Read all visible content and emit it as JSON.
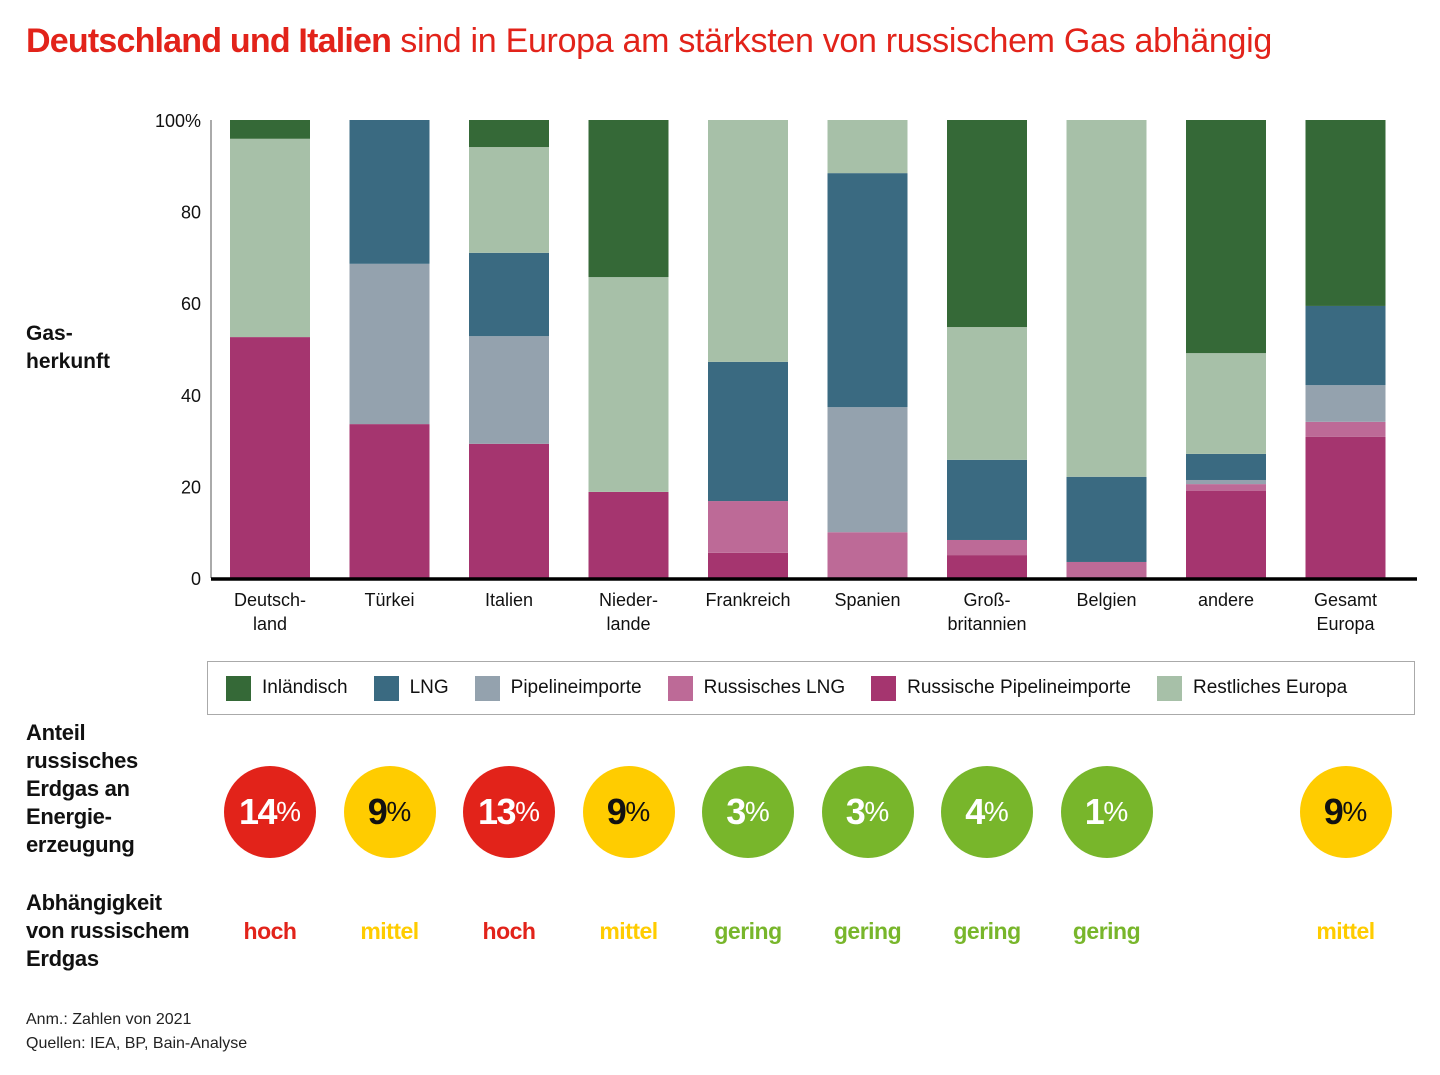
{
  "title": {
    "bold": "Deutschland und Italien",
    "regular": " sind in Europa am stärksten von russischem Gas abhängig",
    "color": "#e2231a"
  },
  "y_axis_title": [
    "Gas-",
    "herkunft"
  ],
  "chart_data": {
    "type": "bar",
    "stacked": true,
    "title": "Deutschland und Italien sind in Europa am stärksten von russischem Gas abhängig",
    "xlabel": "",
    "ylabel": "Gasherkunft",
    "ylim": [
      0,
      100
    ],
    "yticks": [
      0,
      20,
      40,
      60,
      80,
      100
    ],
    "ytick_labels": [
      "0",
      "20",
      "40",
      "60",
      "80",
      "100%"
    ],
    "grid": false,
    "legend_position": "bottom",
    "categories": [
      [
        "Deutsch-",
        "land"
      ],
      [
        "Türkei"
      ],
      [
        "Italien"
      ],
      [
        "Nieder-",
        "lande"
      ],
      [
        "Frankreich"
      ],
      [
        "Spanien"
      ],
      [
        "Groß-",
        "britannien"
      ],
      [
        "Belgien"
      ],
      [
        "andere"
      ],
      [
        "Gesamt",
        "Europa"
      ]
    ],
    "series": [
      {
        "name": "Russische Pipelineimporte",
        "color": "#a5356f",
        "values": [
          52.6,
          33.6,
          29.3,
          18.8,
          5.5,
          0,
          5.0,
          0,
          19.0,
          30.8
        ]
      },
      {
        "name": "Russisches LNG",
        "color": "#bd6a97",
        "values": [
          0,
          0,
          0,
          0,
          11.3,
          10.0,
          3.3,
          3.5,
          1.5,
          3.3
        ]
      },
      {
        "name": "Pipelineimporte",
        "color": "#94a2ae",
        "values": [
          0,
          35.0,
          23.5,
          0,
          0,
          27.3,
          0,
          0,
          0.9,
          8.0
        ]
      },
      {
        "name": "LNG",
        "color": "#3a6a81",
        "values": [
          0,
          31.4,
          18.2,
          0,
          30.4,
          51.1,
          17.5,
          18.6,
          5.7,
          17.3
        ]
      },
      {
        "name": "Restliches Europa",
        "color": "#a7c0a8",
        "values": [
          43.3,
          0,
          23.1,
          46.9,
          52.8,
          11.6,
          29.0,
          77.9,
          22.0,
          0
        ]
      },
      {
        "name": "Inländisch",
        "color": "#356937",
        "values": [
          4.1,
          0,
          5.9,
          34.3,
          0,
          0,
          45.2,
          0,
          50.9,
          40.6
        ]
      }
    ]
  },
  "legend": [
    {
      "label": "Inländisch",
      "color": "#356937"
    },
    {
      "label": "LNG",
      "color": "#3a6a81"
    },
    {
      "label": "Pipelineimporte",
      "color": "#94a2ae"
    },
    {
      "label": "Russisches LNG",
      "color": "#bd6a97"
    },
    {
      "label": "Russische Pipelineimporte",
      "color": "#a5356f"
    },
    {
      "label": "Restliches Europa",
      "color": "#a7c0a8"
    }
  ],
  "share_label": [
    "Anteil",
    "russisches",
    "Erdgas an",
    "Energie-",
    "erzeugung"
  ],
  "dependency_label": [
    "Abhängigkeit",
    "von russischem",
    "Erdgas"
  ],
  "levels": {
    "hoch": {
      "bg": "#e2231a",
      "text": "#ffffff",
      "label_color": "#e2231a"
    },
    "mittel": {
      "bg": "#ffcc00",
      "text": "#111111",
      "label_color": "#ffcc00"
    },
    "gering": {
      "bg": "#78b62b",
      "text": "#ffffff",
      "label_color": "#78b62b"
    }
  },
  "share": [
    {
      "value": "14",
      "unit": "%",
      "level": "hoch",
      "dependency": "hoch"
    },
    {
      "value": "9",
      "unit": "%",
      "level": "mittel",
      "dependency": "mittel"
    },
    {
      "value": "13",
      "unit": "%",
      "level": "hoch",
      "dependency": "hoch"
    },
    {
      "value": "9",
      "unit": "%",
      "level": "mittel",
      "dependency": "mittel"
    },
    {
      "value": "3",
      "unit": "%",
      "level": "gering",
      "dependency": "gering"
    },
    {
      "value": "3",
      "unit": "%",
      "level": "gering",
      "dependency": "gering"
    },
    {
      "value": "4",
      "unit": "%",
      "level": "gering",
      "dependency": "gering"
    },
    {
      "value": "1",
      "unit": "%",
      "level": "gering",
      "dependency": "gering"
    },
    null,
    {
      "value": "9",
      "unit": "%",
      "level": "mittel",
      "dependency": "mittel"
    }
  ],
  "notes": [
    "Anm.: Zahlen von 2021",
    "Quellen: IEA, BP, Bain-Analyse"
  ]
}
